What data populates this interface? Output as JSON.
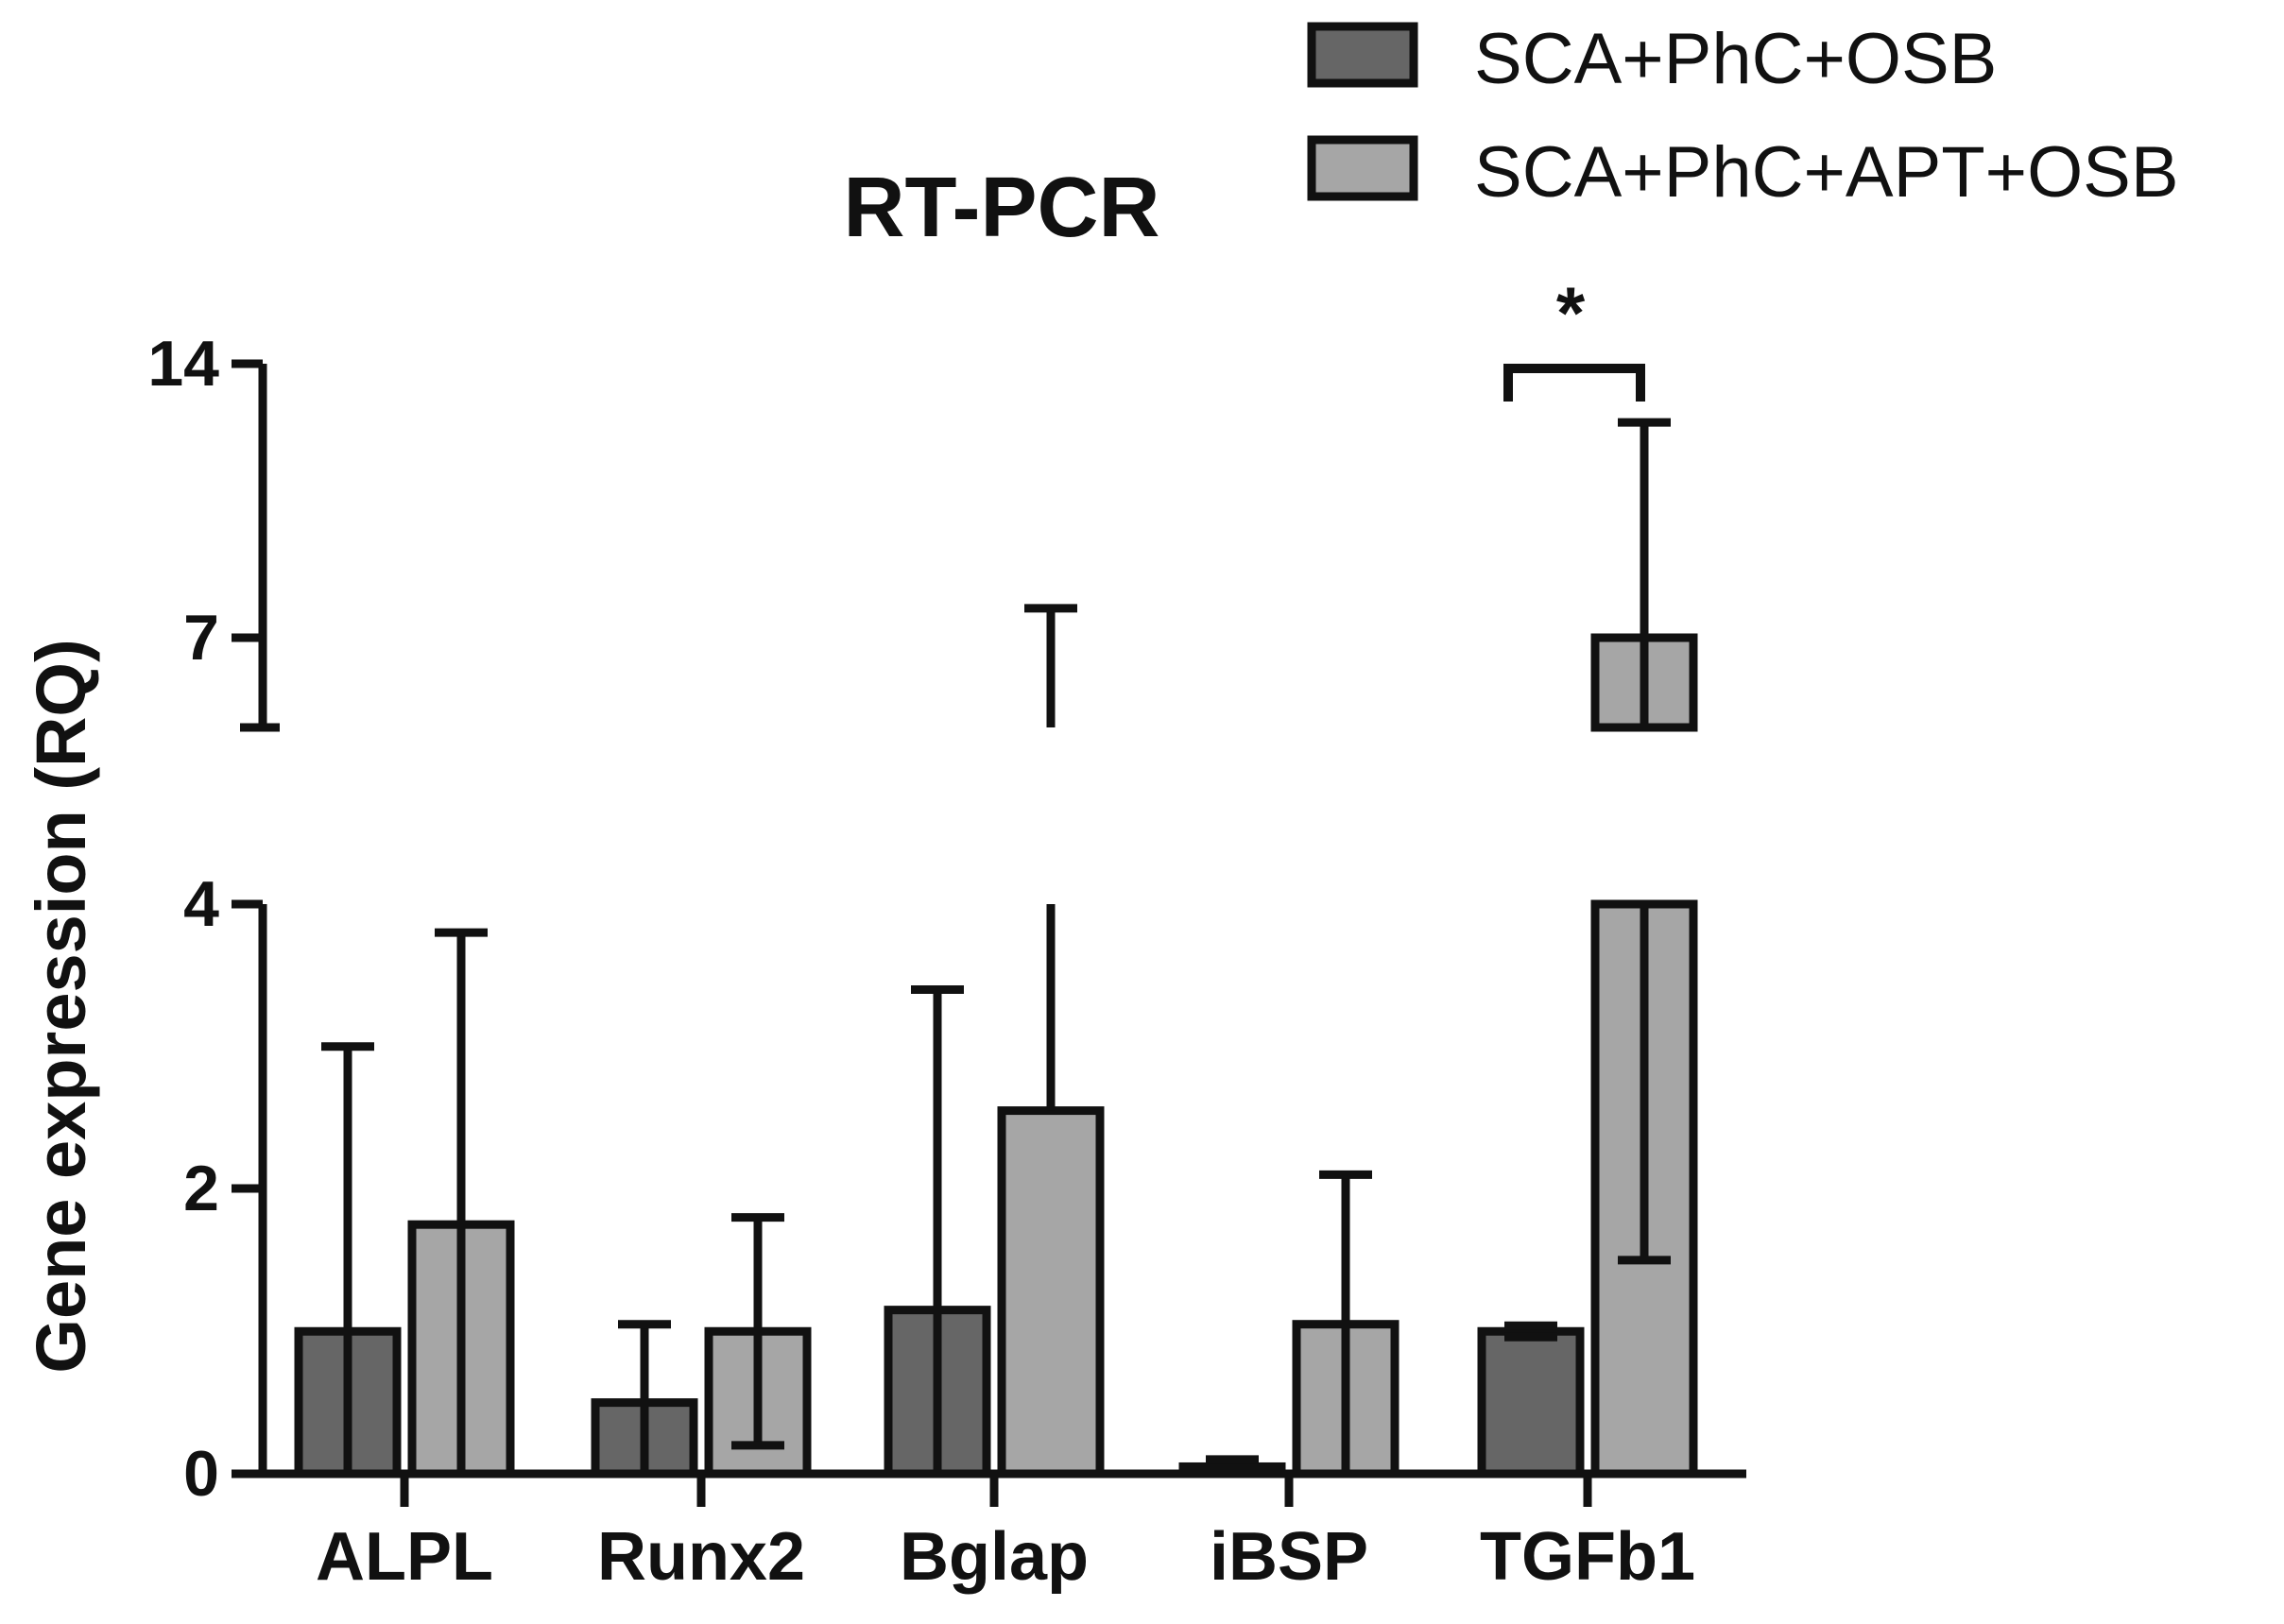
{
  "chart_data": {
    "type": "bar",
    "title": "RT-PCR",
    "ylabel": "Gene expression (RQ)",
    "xlabel": "",
    "categories": [
      "ALPL",
      "Runx2",
      "Bglap",
      "iBSP",
      "TGFb1"
    ],
    "y_axis": {
      "broken": true,
      "segments": [
        {
          "range": [
            0,
            4
          ],
          "ticks": [
            "0",
            "2",
            "4"
          ]
        },
        {
          "range": [
            5.8,
            14
          ],
          "ticks": [
            "7",
            "14"
          ]
        }
      ]
    },
    "series": [
      {
        "name": "SCA+PhC+OSB",
        "color": "#666666",
        "values": [
          1.0,
          0.5,
          1.15,
          0.05,
          1.0
        ],
        "error": [
          2.0,
          0.55,
          2.25,
          0.05,
          0.04
        ]
      },
      {
        "name": "SCA+PhC+APT+OSB",
        "color": "#a6a6a6",
        "values": [
          1.75,
          1.0,
          2.55,
          1.05,
          7.0
        ],
        "error": [
          2.05,
          0.8,
          5.2,
          1.05,
          5.5
        ]
      }
    ],
    "significance": [
      {
        "category": "TGFb1",
        "label": "*"
      }
    ],
    "legend": "top-right",
    "grid": false
  }
}
